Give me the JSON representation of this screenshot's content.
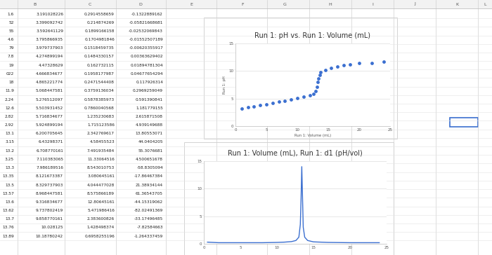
{
  "sheet": {
    "columns": [
      "B",
      "C",
      "D",
      "E",
      "F",
      "G",
      "H",
      "I",
      "J",
      "K",
      "L"
    ],
    "rows": [
      [
        "1.6",
        "3.191028226",
        "0.2914558659",
        "-0.1322889162"
      ],
      [
        "52",
        "3.399092742",
        "0.214874269",
        "-0.05821668681"
      ],
      [
        "55",
        "3.592641129",
        "0.1899166158",
        "-0.02532069843"
      ],
      [
        "4.6",
        "3.795866935",
        "0.1704981846",
        "-0.01552507189"
      ],
      [
        "79",
        "3.979737903",
        "0.1518459735",
        "-0.00620355917"
      ],
      [
        "7.8",
        "4.274899194",
        "0.1484330157",
        "0.00363629402"
      ],
      [
        "19",
        "4.47328629",
        "0.162732115",
        "0.01894781304"
      ],
      [
        "022",
        "4.666834677",
        "0.1958177987",
        "0.04677654294"
      ],
      [
        "18",
        "4.865221774",
        "0.2471544408",
        "0.117926314"
      ],
      [
        "11.9",
        "5.068447581",
        "0.3759136034",
        "0.2969259049"
      ],
      [
        "2.24",
        "5.276512097",
        "0.5878385973",
        "0.591390841"
      ],
      [
        "12.6",
        "5.503931452",
        "0.7860040568",
        "1.181779155"
      ],
      [
        "2.82",
        "5.716834677",
        "1.235230683",
        "2.615871508"
      ],
      [
        "2.92",
        "5.924899194",
        "1.715123586",
        "4.939149688"
      ],
      [
        "13.1",
        "6.200705645",
        "2.342769617",
        "13.80553071"
      ],
      [
        "3.15",
        "6.43298371",
        "4.58455523",
        "44.0404205"
      ],
      [
        "13.2",
        "6.708770161",
        "7.491935484",
        "55.3076681"
      ],
      [
        "3.25",
        "7.110383065",
        "11.33064516",
        "4.500651678"
      ],
      [
        "13.3",
        "7.986189516",
        "8.543010753",
        "-58.8305094"
      ],
      [
        "13.35",
        "8.121673387",
        "3.080645161",
        "-17.86467384"
      ],
      [
        "13.5",
        "8.329737903",
        "4.044477028",
        "21.38934144"
      ],
      [
        "13.57",
        "8.968447581",
        "8.575866189",
        "61.36543705"
      ],
      [
        "13.6",
        "9.316834677",
        "12.80645161",
        "-44.15319062"
      ],
      [
        "13.62",
        "9.737802419",
        "5.471986416",
        "-82.02491369"
      ],
      [
        "13.7",
        "9.858770161",
        "2.383600826",
        "-33.17496485"
      ],
      [
        "13.76",
        "10.028125",
        "1.428498374",
        "-7.82584663"
      ],
      [
        "13.89",
        "10.18780242",
        "0.6958255196",
        "-1.264337459"
      ]
    ]
  },
  "chart_data": [
    {
      "type": "scatter",
      "title": "Run 1: pH vs. Run 1: Volume (mL)",
      "x_label": "Run 1: Volume (mL)",
      "y_label": "Run 1: pH",
      "x": [
        1,
        2,
        3,
        4,
        5,
        6,
        7,
        8,
        9,
        10,
        11,
        12,
        12.6,
        13,
        13.2,
        13.3,
        13.4,
        13.6,
        13.8,
        14.5,
        15.5,
        16.5,
        17.5,
        18.5,
        20,
        22,
        24
      ],
      "values": [
        3.2,
        3.4,
        3.6,
        3.8,
        4.0,
        4.2,
        4.4,
        4.6,
        4.8,
        5.1,
        5.3,
        5.6,
        5.9,
        6.3,
        7.1,
        8.0,
        8.6,
        9.3,
        9.8,
        10.2,
        10.5,
        10.8,
        11.0,
        11.2,
        11.4,
        11.5,
        11.7
      ],
      "color": "#3b6fd0",
      "marker": "o",
      "xlim": [
        0,
        25
      ],
      "xticks": [
        0,
        5,
        10,
        15,
        20,
        25
      ],
      "ylim": [
        0,
        15
      ],
      "yticks": [
        0,
        5,
        10,
        15
      ],
      "grid": true
    },
    {
      "type": "line",
      "title": "Run 1: Volume (mL), Run 1: d1 (pH/vol)",
      "x": [
        0.5,
        2,
        4,
        6,
        8,
        10,
        11,
        12,
        12.6,
        13,
        13.2,
        13.3,
        13.4,
        13.5,
        13.6,
        13.8,
        14.2,
        15,
        17,
        20,
        24
      ],
      "values": [
        0.3,
        0.2,
        0.2,
        0.2,
        0.2,
        0.25,
        0.3,
        0.4,
        0.6,
        1.2,
        3.5,
        8.0,
        14.0,
        8.5,
        3.0,
        1.2,
        0.6,
        0.35,
        0.25,
        0.2,
        0.2
      ],
      "color": "#3b6fd0",
      "line_style": "solid",
      "xlim": [
        0,
        25
      ],
      "xticks": [
        0,
        5,
        10,
        15,
        20,
        25
      ],
      "ylim": [
        0,
        15
      ],
      "yticks": [
        0,
        5,
        10,
        15
      ],
      "grid": true
    }
  ]
}
